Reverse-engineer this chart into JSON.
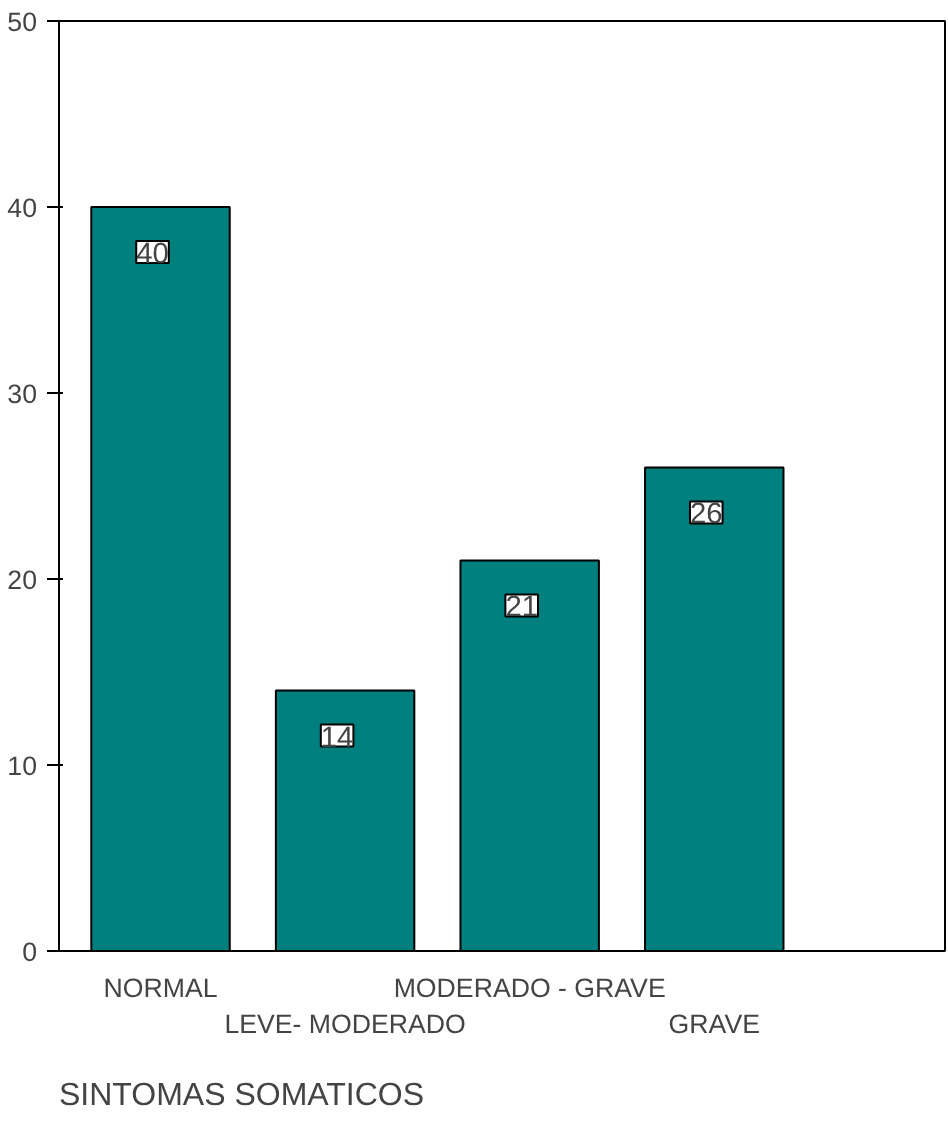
{
  "chart_data": {
    "type": "bar",
    "xlabel": "SINTOMAS SOMATICOS",
    "categories": [
      "NORMAL",
      "LEVE- MODERADO",
      "MODERADO - GRAVE",
      "GRAVE"
    ],
    "values": [
      40,
      14,
      21,
      26
    ],
    "color": "#007f7f",
    "ylim": [
      0,
      50
    ],
    "yticks": [
      0,
      10,
      20,
      30,
      40,
      50
    ],
    "grid": false,
    "data_labels": true
  }
}
